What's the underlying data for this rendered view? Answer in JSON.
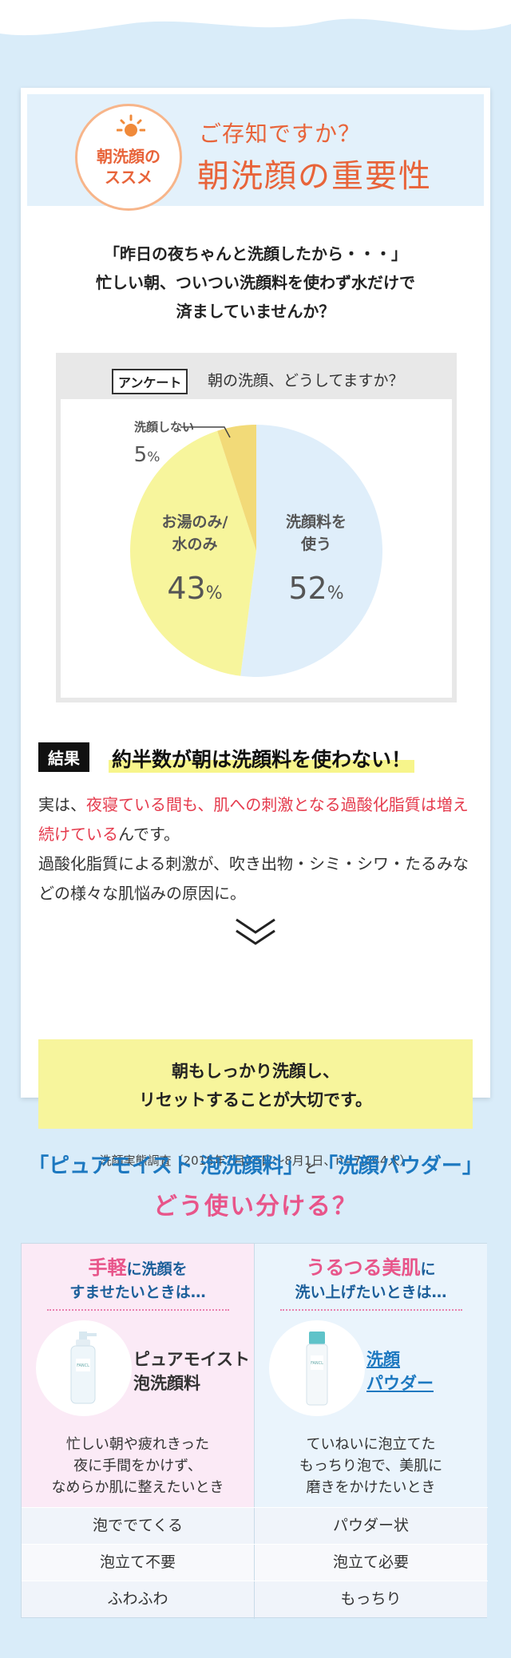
{
  "header": {
    "badge_text": "朝洗顔の\nススメ",
    "subtitle": "ご存知ですか？",
    "title": "朝洗顔の重要性"
  },
  "intro": "「昨日の夜ちゃんと洗顔したから・・・」\n忙しい朝、ついつい洗顔料を使わず水だけで\n済ましていませんか？",
  "survey": {
    "tag": "アンケート",
    "question": "朝の洗顔、どうしてますか？"
  },
  "chart_data": {
    "type": "pie",
    "slices": [
      {
        "label": "洗顔料を\n使う",
        "label_lines": [
          "洗顔料を",
          "使う"
        ],
        "value": 52,
        "display": "52",
        "color": "#dfeefa"
      },
      {
        "label": "お湯のみ/\n水のみ",
        "label_lines": [
          "お湯のみ/",
          "水のみ"
        ],
        "value": 43,
        "display": "43",
        "color": "#f7f59c"
      },
      {
        "label": "洗顔しない",
        "label_lines": [
          "洗顔しない"
        ],
        "value": 5,
        "display": "5",
        "color": "#f2da78"
      }
    ],
    "unit": "%"
  },
  "result": {
    "tag": "結果",
    "title": "約半数が朝は洗顔料を使わない！",
    "p1_pre": "実は、",
    "p1_red": "夜寝ている間も、肌への刺激となる過酸化脂質は増え続けている",
    "p1_post": "んです。",
    "p2": "過酸化脂質による刺激が、吹き出物・シミ・シワ・たるみなどの様々な肌悩みの原因に。"
  },
  "point": "朝もしっかり洗顔し、\nリセットすることが大切です。",
  "source": "洗顔実態調査（2018年7月30日〜8月1日、n=7,844人）",
  "compare": {
    "title_part1": "「ピュアモイスト 泡洗顔料」",
    "title_and": "と",
    "title_part2": "「洗顔パウダー」",
    "subtitle": "どう使い分ける？",
    "left": {
      "head_big": "手軽",
      "head_rest": "に洗顔を",
      "head_line2": "すませたいときは…",
      "product": "ピュアモイスト\n泡洗顔料",
      "product_l1": "ピュアモイスト",
      "product_l2": "泡洗顔料",
      "desc": "忙しい朝や疲れきった\n夜に手間をかけず、\nなめらか肌に整えたいとき"
    },
    "right": {
      "head_big": "うるつる美肌",
      "head_rest": "に",
      "head_line2": "洗い上げたいときは…",
      "product_l1": "洗顔",
      "product_l2": "パウダー",
      "desc": "ていねいに泡立てた\nもっちり泡で、美肌に\n磨きをかけたいとき"
    },
    "rows": [
      {
        "left": "泡ででてくる",
        "right": "パウダー状"
      },
      {
        "left": "泡立て不要",
        "right": "泡立て必要"
      },
      {
        "left": "ふわふわ",
        "right": "もっちり"
      }
    ]
  },
  "colors": {
    "accent_orange": "#e8643a",
    "accent_pink": "#e8558a",
    "accent_blue": "#1c78c0",
    "highlight_red": "#e53b4d"
  }
}
